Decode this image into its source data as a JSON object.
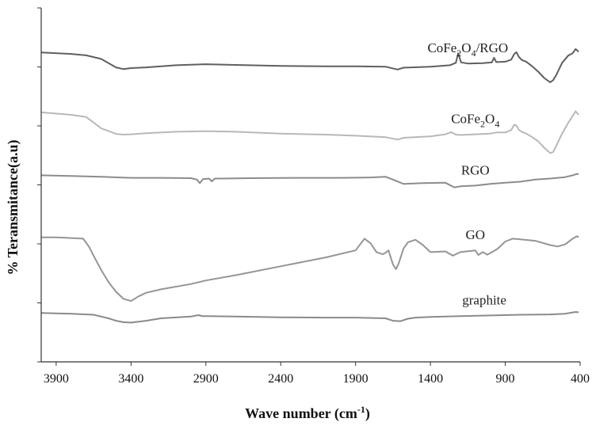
{
  "chart_data": {
    "type": "line",
    "xlabel": "Wave number (cm",
    "xlabel_sup": "-1",
    "xlabel_end": ")",
    "ylabel": "% Teransmitance(a.u)",
    "xlim": [
      4000,
      400
    ],
    "x_reversed": true,
    "x_ticks": [
      3900,
      3400,
      2900,
      2400,
      1900,
      1400,
      900,
      400
    ],
    "x_tick_labels": [
      "3900",
      "3400",
      "2900",
      "2400",
      "1900",
      "1400",
      "900",
      "400"
    ],
    "ylim": [
      0,
      100
    ],
    "y_ticks": [
      0,
      16.67,
      33.33,
      50,
      66.67,
      83.33,
      100
    ],
    "grid": false,
    "legend": "none",
    "series": [
      {
        "name_parts": [
          "CoFe",
          "2",
          "O",
          "4",
          "/RGO"
        ],
        "color": "#5f5f5f",
        "x": [
          4000,
          3800,
          3700,
          3600,
          3500,
          3450,
          3400,
          3300,
          3100,
          2900,
          2700,
          2400,
          2100,
          1900,
          1700,
          1620,
          1580,
          1400,
          1270,
          1230,
          1215,
          1195,
          1150,
          1050,
          990,
          975,
          960,
          900,
          860,
          840,
          825,
          810,
          790,
          760,
          720,
          680,
          640,
          600,
          580,
          560,
          520,
          480,
          450,
          430,
          410
        ],
        "y": [
          87.4,
          87.0,
          86.6,
          85.6,
          83.2,
          82.7,
          83.0,
          83.2,
          83.8,
          84.1,
          83.9,
          83.6,
          83.5,
          83.5,
          83.4,
          82.6,
          83.1,
          83.4,
          83.8,
          84.5,
          87.2,
          84.6,
          84.3,
          84.4,
          84.6,
          85.9,
          84.7,
          84.8,
          85.4,
          87.0,
          87.5,
          86.2,
          85.3,
          84.8,
          83.5,
          82.0,
          80.2,
          79.0,
          79.6,
          81.0,
          84.5,
          86.5,
          87.2,
          88.4,
          87.6
        ]
      },
      {
        "name_parts": [
          "CoFe",
          "2",
          "O",
          "4"
        ],
        "color": "#b8b8b8",
        "x": [
          4000,
          3800,
          3700,
          3600,
          3500,
          3450,
          3400,
          3300,
          3100,
          2900,
          2700,
          2400,
          2100,
          1900,
          1700,
          1620,
          1580,
          1400,
          1300,
          1260,
          1230,
          1200,
          1100,
          1000,
          960,
          900,
          860,
          840,
          825,
          810,
          790,
          760,
          720,
          680,
          640,
          600,
          580,
          560,
          520,
          480,
          450,
          430,
          410
        ],
        "y": [
          70.5,
          69.8,
          69.2,
          66.0,
          64.4,
          64.2,
          64.3,
          64.6,
          65.0,
          65.2,
          65.0,
          64.5,
          64.2,
          63.9,
          63.5,
          62.8,
          63.3,
          63.7,
          64.3,
          64.9,
          64.2,
          64.1,
          64.3,
          64.5,
          64.8,
          64.8,
          65.5,
          67.0,
          66.8,
          65.6,
          65.0,
          64.5,
          63.5,
          62.3,
          60.5,
          59.0,
          59.3,
          61.0,
          64.5,
          67.5,
          69.5,
          70.8,
          69.8
        ]
      },
      {
        "name": "RGO",
        "color": "#8c8c8c",
        "x": [
          4000,
          3800,
          3600,
          3400,
          3200,
          3000,
          2960,
          2940,
          2920,
          2880,
          2860,
          2840,
          2800,
          2600,
          2300,
          2000,
          1800,
          1700,
          1650,
          1580,
          1450,
          1300,
          1240,
          1200,
          1100,
          1000,
          900,
          800,
          700,
          600,
          500,
          450,
          420,
          410
        ],
        "y": [
          52.7,
          52.5,
          52.3,
          52.0,
          52.0,
          51.9,
          51.5,
          50.5,
          51.6,
          51.8,
          51.0,
          51.8,
          51.8,
          51.9,
          52.0,
          52.0,
          52.1,
          52.3,
          51.5,
          50.3,
          50.5,
          50.6,
          49.3,
          49.6,
          49.8,
          50.3,
          50.6,
          50.9,
          51.5,
          51.8,
          52.2,
          52.7,
          53.1,
          53.0
        ]
      },
      {
        "name": "GO",
        "color": "#959595",
        "x": [
          4000,
          3900,
          3800,
          3720,
          3680,
          3650,
          3600,
          3550,
          3500,
          3450,
          3400,
          3350,
          3300,
          3200,
          3000,
          2900,
          2700,
          2400,
          2100,
          1900,
          1840,
          1800,
          1760,
          1720,
          1700,
          1680,
          1650,
          1630,
          1610,
          1580,
          1550,
          1500,
          1450,
          1400,
          1300,
          1250,
          1200,
          1100,
          1080,
          1050,
          1020,
          980,
          950,
          900,
          850,
          800,
          700,
          600,
          550,
          500,
          450,
          420,
          410
        ],
        "y": [
          35.2,
          35.2,
          35.0,
          34.8,
          32.5,
          30.0,
          26.0,
          22.5,
          19.8,
          17.8,
          17.2,
          18.5,
          19.5,
          20.5,
          22.0,
          23.0,
          24.5,
          27.0,
          29.5,
          31.5,
          34.8,
          33.5,
          31.0,
          30.4,
          30.8,
          31.5,
          27.5,
          26.2,
          28.0,
          32.0,
          33.8,
          34.5,
          33.0,
          31.0,
          31.2,
          30.0,
          31.0,
          31.5,
          30.2,
          31.0,
          30.3,
          31.2,
          32.0,
          34.0,
          34.8,
          34.6,
          34.2,
          33.0,
          32.6,
          33.2,
          34.8,
          35.5,
          35.2
        ]
      },
      {
        "name": "graphite",
        "color": "#8a8a8a",
        "x": [
          4000,
          3800,
          3650,
          3550,
          3500,
          3450,
          3400,
          3300,
          3200,
          3000,
          2950,
          2920,
          2880,
          2700,
          2400,
          2100,
          1900,
          1700,
          1650,
          1600,
          1550,
          1500,
          1400,
          1200,
          1000,
          800,
          600,
          500,
          430,
          410
        ],
        "y": [
          13.8,
          13.6,
          13.3,
          12.3,
          11.6,
          11.2,
          11.1,
          11.6,
          12.3,
          12.8,
          13.2,
          12.9,
          12.9,
          12.8,
          12.6,
          12.5,
          12.5,
          12.3,
          11.6,
          11.5,
          12.2,
          12.5,
          12.7,
          12.9,
          13.1,
          13.3,
          13.4,
          13.6,
          14.1,
          14.0
        ]
      }
    ]
  }
}
